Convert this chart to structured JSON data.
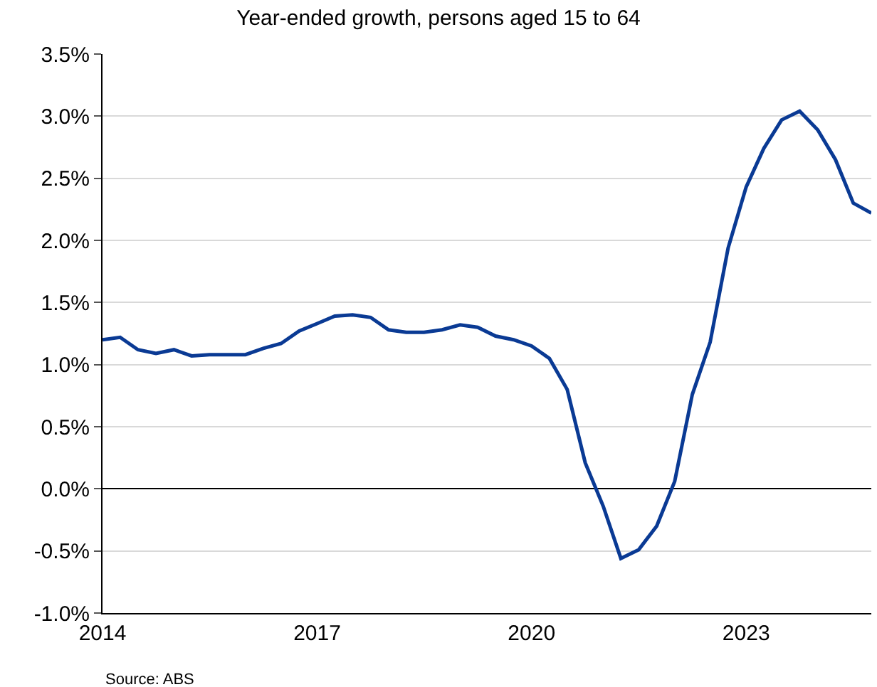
{
  "chart_data": {
    "type": "line",
    "title": "Year-ended growth, persons aged 15 to 64",
    "x": [
      "2014-01",
      "2014-04",
      "2014-07",
      "2014-10",
      "2015-01",
      "2015-04",
      "2015-07",
      "2015-10",
      "2016-01",
      "2016-04",
      "2016-07",
      "2016-10",
      "2017-01",
      "2017-04",
      "2017-07",
      "2017-10",
      "2018-01",
      "2018-04",
      "2018-07",
      "2018-10",
      "2019-01",
      "2019-04",
      "2019-07",
      "2019-10",
      "2020-01",
      "2020-04",
      "2020-07",
      "2020-10",
      "2021-01",
      "2021-04",
      "2021-07",
      "2021-10",
      "2022-01",
      "2022-04",
      "2022-07",
      "2022-10",
      "2023-01",
      "2023-04",
      "2023-07",
      "2023-10",
      "2024-01",
      "2024-04",
      "2024-07",
      "2024-10"
    ],
    "series": [
      {
        "color": "#0a3a94",
        "values": [
          1.2,
          1.22,
          1.12,
          1.09,
          1.12,
          1.07,
          1.08,
          1.08,
          1.08,
          1.13,
          1.17,
          1.27,
          1.33,
          1.39,
          1.4,
          1.38,
          1.28,
          1.26,
          1.26,
          1.28,
          1.32,
          1.3,
          1.23,
          1.2,
          1.15,
          1.05,
          0.8,
          0.21,
          -0.14,
          -0.56,
          -0.49,
          -0.3,
          0.06,
          0.76,
          1.18,
          1.94,
          2.43,
          2.74,
          2.97,
          3.04,
          2.89,
          2.65,
          2.3,
          2.22
        ]
      }
    ],
    "xlim": [
      "2014-01-01",
      "2024-10-01"
    ],
    "xticks": [
      {
        "value": "2014-01-01",
        "label": "2014"
      },
      {
        "value": "2017-01-01",
        "label": "2017"
      },
      {
        "value": "2020-01-01",
        "label": "2020"
      },
      {
        "value": "2023-01-01",
        "label": "2023"
      }
    ],
    "ylim": [
      -1.0,
      3.5
    ],
    "yticks": [
      {
        "value": -1.0,
        "label": "-1.0%"
      },
      {
        "value": -0.5,
        "label": "-0.5%"
      },
      {
        "value": 0,
        "label": "0.0%"
      },
      {
        "value": 0.5,
        "label": "0.5%"
      },
      {
        "value": 1.0,
        "label": "1.0%"
      },
      {
        "value": 1.5,
        "label": "1.5%"
      },
      {
        "value": 2.0,
        "label": "2.0%"
      },
      {
        "value": 2.5,
        "label": "2.5%"
      },
      {
        "value": 3.0,
        "label": "3.0%"
      },
      {
        "value": 3.5,
        "label": "3.5%"
      }
    ],
    "grid": "y",
    "marker": "none",
    "line_style": "solid",
    "annotations": [
      "Source: ABS"
    ]
  }
}
